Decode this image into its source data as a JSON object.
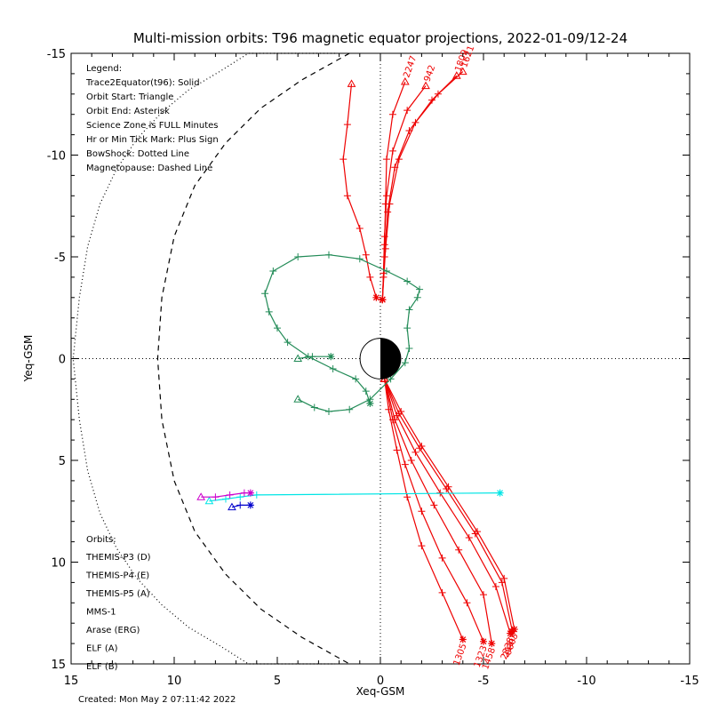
{
  "chart_data": {
    "type": "line",
    "title": "Multi-mission orbits: T96 magnetic equator projections, 2022-01-09/12-24",
    "xlabel": "Xeq-GSM",
    "ylabel": "Yeq-GSM",
    "xlim": [
      15,
      -15
    ],
    "ylim": [
      -15,
      15
    ],
    "xticks": [
      15,
      10,
      5,
      0,
      -5,
      -10,
      -15
    ],
    "yticks": [
      -15,
      -10,
      -5,
      0,
      5,
      10,
      15
    ],
    "xtick_labels": [
      "15",
      "10",
      "5",
      "0",
      "-5",
      "-10",
      "-15"
    ],
    "ytick_labels": [
      "-15",
      "-10",
      "-5",
      "0",
      "5",
      "10",
      "15"
    ],
    "legend": {
      "lines": [
        "Legend:",
        "Trace2Equator(t96): Solid",
        "Orbit Start: Triangle",
        "Orbit End: Asterisk",
        "Science Zone is FULL Minutes",
        "Hr or Min Tick Mark: Plus Sign",
        "BowShock: Dotted Line",
        "Magnetopause: Dashed Line"
      ]
    },
    "orbit_legend": {
      "header": "Orbits:",
      "entries": [
        {
          "label": "THEMIS-P3 (D)",
          "color": "#00e5e5"
        },
        {
          "label": "THEMIS-P4 (E)",
          "color": "#0000cc"
        },
        {
          "label": "THEMIS-P5 (A)",
          "color": "#cc00cc"
        },
        {
          "label": "MMS-1",
          "color": "#000000"
        },
        {
          "label": "Arase (ERG)",
          "color": "#228b57"
        },
        {
          "label": "ELF (A)",
          "color": "#3399ff"
        },
        {
          "label": "ELF (B)",
          "color": "#ee0000"
        }
      ]
    },
    "created": "Created: Mon May  2 07:11:42 2022",
    "reference_lines": {
      "x_zero": true,
      "y_zero": true,
      "style": "dotted"
    },
    "bow_shock": {
      "style": "dotted",
      "x": [
        14.9,
        14.6,
        14.2,
        13.6,
        12.8,
        11.8,
        10.6,
        9.3,
        7.8,
        6.4,
        5.0,
        3.6,
        2.2
      ],
      "y": [
        0,
        -3,
        -5.5,
        -7.6,
        -9.3,
        -10.8,
        -12.1,
        -13.2,
        -14.1,
        -15.0,
        -15.0,
        -15.0,
        -15.0
      ]
    },
    "magnetopause": {
      "style": "dashed",
      "x": [
        10.8,
        10.6,
        10.0,
        9.0,
        7.5,
        5.8,
        3.8,
        1.5
      ],
      "y": [
        0,
        -3,
        -6,
        -8.5,
        -10.6,
        -12.3,
        -13.7,
        -15.0
      ]
    },
    "series": [
      {
        "name": "ELF (B)",
        "color": "#ee0000",
        "tracks": [
          {
            "label": "2247",
            "x": [
              -1.2,
              -0.6,
              -0.3,
              -0.25,
              -0.2,
              -0.15,
              -0.1
            ],
            "y": [
              -13.6,
              -12.0,
              -9.8,
              -7.6,
              -5.6,
              -4.0,
              -2.9
            ]
          },
          {
            "label": "942",
            "x": [
              -2.2,
              -1.3,
              -0.6,
              -0.3,
              -0.2,
              -0.15,
              -0.1
            ],
            "y": [
              -13.4,
              -12.2,
              -10.2,
              -8.0,
              -6.0,
              -4.2,
              -2.9
            ]
          },
          {
            "label": "1809",
            "x": [
              -3.7,
              -2.5,
              -1.4,
              -0.7,
              -0.35,
              -0.2,
              -0.1
            ],
            "y": [
              -13.9,
              -12.7,
              -11.2,
              -9.4,
              -7.2,
              -5.0,
              -2.9
            ]
          },
          {
            "label": "1621",
            "x": [
              -4.0,
              -2.8,
              -1.7,
              -0.9,
              -0.45,
              -0.25,
              -0.1
            ],
            "y": [
              -14.1,
              -13.0,
              -11.6,
              -9.8,
              -7.6,
              -5.4,
              -2.9
            ]
          },
          {
            "label": "",
            "x": [
              1.4,
              1.6,
              1.8,
              1.6,
              1.0,
              0.7,
              0.5,
              0.2
            ],
            "y": [
              -13.5,
              -11.5,
              -9.8,
              -8.0,
              -6.4,
              -5.1,
              -4.0,
              -3.0
            ]
          },
          {
            "label": "1305",
            "x": [
              -0.2,
              -0.4,
              -0.8,
              -1.3,
              -2.0,
              -3.0,
              -4.0
            ],
            "y": [
              1.0,
              2.5,
              4.5,
              6.8,
              9.2,
              11.5,
              13.8
            ]
          },
          {
            "label": "1323",
            "x": [
              -0.2,
              -0.6,
              -1.2,
              -2.0,
              -3.0,
              -4.2,
              -5.0
            ],
            "y": [
              1.0,
              3.0,
              5.2,
              7.5,
              9.8,
              12.0,
              13.9
            ]
          },
          {
            "label": "1458",
            "x": [
              -0.2,
              -0.7,
              -1.5,
              -2.6,
              -3.8,
              -5.0,
              -5.4
            ],
            "y": [
              1.0,
              3.0,
              5.0,
              7.2,
              9.4,
              11.6,
              14.0
            ]
          },
          {
            "label": "2238",
            "x": [
              -0.2,
              -0.8,
              -1.7,
              -2.9,
              -4.3,
              -5.6,
              -6.3
            ],
            "y": [
              1.0,
              2.8,
              4.6,
              6.6,
              8.8,
              11.2,
              13.5
            ]
          },
          {
            "label": "2110",
            "x": [
              -0.2,
              -0.9,
              -1.9,
              -3.2,
              -4.6,
              -5.9,
              -6.4
            ],
            "y": [
              1.0,
              2.7,
              4.4,
              6.4,
              8.6,
              11.0,
              13.4
            ]
          },
          {
            "label": "0603",
            "x": [
              -0.2,
              -1.0,
              -2.0,
              -3.3,
              -4.7,
              -6.0,
              -6.5
            ],
            "y": [
              1.0,
              2.6,
              4.3,
              6.3,
              8.5,
              10.8,
              13.3
            ]
          }
        ]
      },
      {
        "name": "Arase (ERG)",
        "color": "#228b57",
        "tracks": [
          {
            "label": "",
            "x": [
              4.0,
              3.2,
              2.5,
              1.5,
              0.5,
              -0.5,
              -1.2,
              -1.4,
              -1.3,
              -1.4,
              -1.8,
              -1.9,
              -1.3,
              -0.3,
              1.0,
              2.5,
              4.0,
              5.2,
              5.6,
              5.4,
              5.0,
              4.5,
              3.5,
              2.3,
              1.2,
              0.7,
              0.5
            ],
            "y": [
              2.0,
              2.4,
              2.6,
              2.5,
              2.0,
              1.0,
              0.2,
              -0.5,
              -1.5,
              -2.4,
              -3.0,
              -3.4,
              -3.8,
              -4.3,
              -4.9,
              -5.1,
              -5.0,
              -4.3,
              -3.2,
              -2.3,
              -1.5,
              -0.8,
              -0.1,
              0.5,
              1.0,
              1.6,
              2.2
            ]
          },
          {
            "label": "",
            "x": [
              4.0,
              3.3,
              2.4
            ],
            "y": [
              0,
              -0.1,
              -0.1
            ]
          }
        ]
      },
      {
        "name": "THEMIS-P3 (D)",
        "color": "#00e5e5",
        "tracks": [
          {
            "label": "",
            "x": [
              8.3,
              7.5,
              6.8,
              6.0,
              -5.8
            ],
            "y": [
              7.0,
              6.9,
              6.8,
              6.7,
              6.6
            ]
          }
        ]
      },
      {
        "name": "THEMIS-P4 (E)",
        "color": "#0000cc",
        "tracks": [
          {
            "label": "",
            "x": [
              7.2,
              6.8,
              6.3
            ],
            "y": [
              7.3,
              7.2,
              7.2
            ]
          }
        ]
      },
      {
        "name": "THEMIS-P5 (A)",
        "color": "#cc00cc",
        "tracks": [
          {
            "label": "",
            "x": [
              8.7,
              8.0,
              7.3,
              6.6,
              6.3
            ],
            "y": [
              6.8,
              6.8,
              6.7,
              6.6,
              6.6
            ]
          }
        ]
      }
    ]
  }
}
